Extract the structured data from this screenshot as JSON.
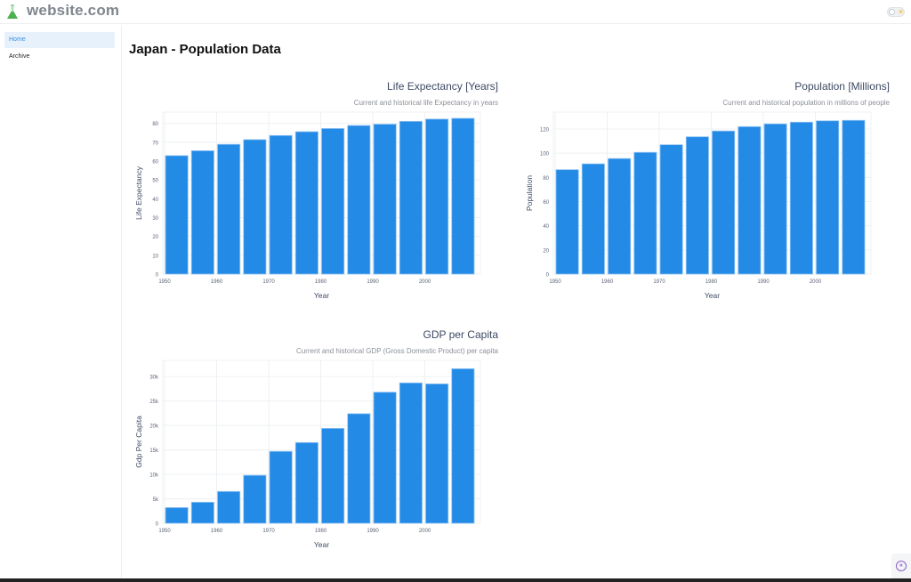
{
  "header": {
    "site_name": "website.com",
    "logo_icon": "flask-icon",
    "theme_toggle_icon": "sun-icon"
  },
  "sidebar": {
    "items": [
      {
        "label": "Home",
        "active": true
      },
      {
        "label": "Archive",
        "active": false
      }
    ]
  },
  "main": {
    "page_title": "Japan - Population Data"
  },
  "colors": {
    "bar": "#238ae6",
    "grid": "#eef0f3",
    "title": "#3d4a63",
    "subtitle": "#8a8f98",
    "active_nav_bg": "#e6f1fc",
    "active_nav_text": "#3a8ee6"
  },
  "collapse_button_icon": "chevrons-left-icon",
  "chart_data": [
    {
      "type": "bar",
      "title": "Life Expectancy [Years]",
      "subtitle": "Current and historical life Expectancy in years",
      "xlabel": "Year",
      "ylabel": "Life Expectancy",
      "x": [
        1950,
        1955,
        1960,
        1965,
        1970,
        1975,
        1980,
        1985,
        1990,
        1995,
        2000,
        2005
      ],
      "values": [
        62.9,
        65.5,
        68.9,
        71.4,
        73.6,
        75.6,
        77.3,
        78.9,
        79.6,
        81.1,
        82.3,
        82.7
      ],
      "x_ticks": [
        "1950",
        "1960",
        "1970",
        "1980",
        "1990",
        "2000"
      ],
      "y_ticks": [
        "0",
        "10",
        "20",
        "30",
        "40",
        "50",
        "60",
        "70",
        "80"
      ],
      "ylim": [
        0,
        86
      ],
      "grid": true
    },
    {
      "type": "bar",
      "title": "Population [Millions]",
      "subtitle": "Current and historical population in millions of people",
      "xlabel": "Year",
      "ylabel": "Population",
      "x": [
        1950,
        1955,
        1960,
        1965,
        1970,
        1975,
        1980,
        1985,
        1990,
        1995,
        2000,
        2005
      ],
      "values": [
        86.4,
        91.2,
        95.6,
        100.7,
        107.0,
        113.6,
        118.4,
        122.0,
        124.3,
        125.7,
        126.8,
        127.2
      ],
      "x_ticks": [
        "1950",
        "1960",
        "1970",
        "1980",
        "1990",
        "2000"
      ],
      "y_ticks": [
        "0",
        "20",
        "40",
        "60",
        "80",
        "100",
        "120"
      ],
      "ylim": [
        0,
        134
      ],
      "grid": true
    },
    {
      "type": "bar",
      "title": "GDP per Capita",
      "subtitle": "Current and historical GDP (Gross Domestic Product) per capita",
      "xlabel": "Year",
      "ylabel": "Gdp Per Capita",
      "x": [
        1950,
        1955,
        1960,
        1965,
        1970,
        1975,
        1980,
        1985,
        1990,
        1995,
        2000,
        2005
      ],
      "values": [
        3200,
        4300,
        6500,
        9800,
        14700,
        16500,
        19400,
        22400,
        26800,
        28700,
        28500,
        31600
      ],
      "x_ticks": [
        "1950",
        "1960",
        "1970",
        "1980",
        "1990",
        "2000"
      ],
      "y_ticks": [
        "0",
        "5k",
        "10k",
        "15k",
        "20k",
        "25k",
        "30k"
      ],
      "ylim": [
        0,
        33300
      ],
      "grid": true
    }
  ]
}
